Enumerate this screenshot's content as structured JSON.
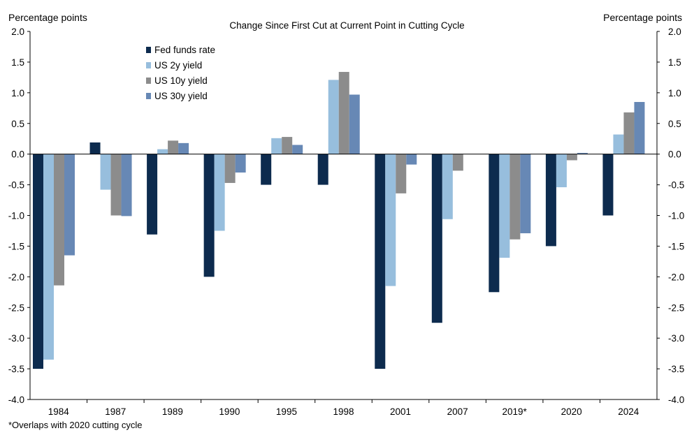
{
  "chart_data": {
    "type": "bar",
    "title": "Change Since First Cut at Current Point in Cutting Cycle",
    "ylabel_left": "Percentage points",
    "ylabel_right": "Percentage points",
    "ylim": [
      -4.0,
      2.0
    ],
    "yticks": [
      "2.0",
      "1.5",
      "1.0",
      "0.5",
      "0.0",
      "-0.5",
      "-1.0",
      "-1.5",
      "-2.0",
      "-2.5",
      "-3.0",
      "-3.5",
      "-4.0"
    ],
    "grid": false,
    "legend_position": "top-left",
    "categories": [
      "1984",
      "1987",
      "1989",
      "1990",
      "1995",
      "1998",
      "2001",
      "2007",
      "2019*",
      "2020",
      "2024"
    ],
    "series": [
      {
        "name": "Fed funds rate",
        "color": "#0d2b4e",
        "values": [
          -3.5,
          0.19,
          -1.31,
          -2.0,
          -0.5,
          -0.5,
          -3.5,
          -2.75,
          -2.25,
          -1.5,
          -1.0
        ]
      },
      {
        "name": "US 2y yield",
        "color": "#97bedd",
        "values": [
          -3.35,
          -0.58,
          0.08,
          -1.25,
          0.26,
          1.21,
          -2.15,
          -1.06,
          -1.69,
          -0.54,
          0.32
        ]
      },
      {
        "name": "US 10y yield",
        "color": "#8c8c8c",
        "values": [
          -2.14,
          -1.0,
          0.22,
          -0.47,
          0.28,
          1.34,
          -0.64,
          -0.27,
          -1.39,
          -0.1,
          0.68
        ]
      },
      {
        "name": "US 30y yield",
        "color": "#6788b5",
        "values": [
          -1.65,
          -1.01,
          0.18,
          -0.3,
          0.15,
          0.97,
          -0.17,
          null,
          -1.29,
          0.02,
          0.85
        ]
      }
    ],
    "footnote": "*Overlaps with 2020 cutting cycle"
  }
}
